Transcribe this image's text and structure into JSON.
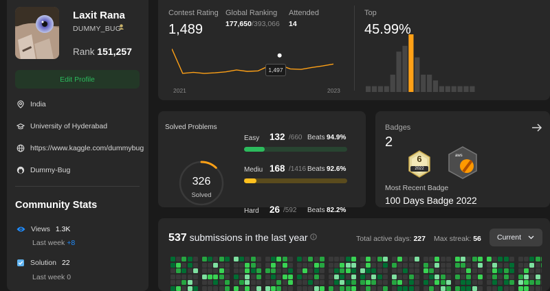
{
  "profile": {
    "name": "Laxit Rana",
    "handle": "DUMMY_BUG",
    "rank_label": "Rank",
    "rank_value": "151,257",
    "edit_button": "Edit Profile",
    "location": "India",
    "school": "University of Hyderabad",
    "website": "https://www.kaggle.com/dummybug",
    "github": "Dummy-Bug"
  },
  "community": {
    "title": "Community Stats",
    "views_label": "Views",
    "views_value": "1.3K",
    "views_sub": "Last week",
    "views_delta": "+8",
    "solution_label": "Solution",
    "solution_value": "22",
    "solution_sub": "Last week",
    "solution_delta": "0"
  },
  "contest": {
    "rating_label": "Contest Rating",
    "rating_value": "1,489",
    "global_label": "Global Ranking",
    "global_rank": "177,650",
    "global_total": "/393,066",
    "attended_label": "Attended",
    "attended_value": "14",
    "tooltip": "1,497",
    "year_start": "2021",
    "year_end": "2023",
    "top_label": "Top",
    "top_value": "45.99%",
    "rating_history": [
      1530,
      1480,
      1482,
      1480,
      1481,
      1483,
      1487,
      1484,
      1485,
      1495,
      1497,
      1489,
      1488,
      1492,
      1495,
      1499
    ],
    "histogram": [
      1,
      1,
      1,
      1,
      3,
      7,
      8,
      10,
      6,
      3,
      3,
      2,
      1,
      1,
      1,
      1,
      1,
      1
    ],
    "histogram_highlight_index": 7
  },
  "solved": {
    "title": "Solved Problems",
    "total": "326",
    "total_label": "Solved",
    "ring_fraction": 0.12,
    "beats_label": "Beats",
    "rows": [
      {
        "label": "Easy",
        "solved": "132",
        "total": "/660",
        "beats": "94.9%",
        "fraction": 0.2,
        "color": "#2cbb5d",
        "track": "#284431"
      },
      {
        "label": "Mediu\nm",
        "solved": "168",
        "total": "/1416",
        "beats": "92.6%",
        "fraction": 0.118,
        "color": "#ffc01e",
        "track": "#5a4b1d"
      },
      {
        "label": "Hard",
        "solved": "26",
        "total": "/592",
        "beats": "82.2%",
        "fraction": 0.044,
        "color": "#ef4743",
        "track": "#5a2d2c"
      }
    ]
  },
  "badges": {
    "title": "Badges",
    "count": "2",
    "badge1_number": "6",
    "badge1_year": "2022",
    "badge2_text": "aws",
    "recent_label": "Most Recent Badge",
    "recent_name": "100 Days Badge 2022"
  },
  "submissions": {
    "count": "537",
    "text": "submissions in the last year",
    "active_label": "Total active days:",
    "active_value": "227",
    "streak_label": "Max streak:",
    "streak_value": "56",
    "period": "Current"
  },
  "colors": {
    "accent_green": "#2cbb5d",
    "accent_orange": "#ffa116",
    "link_blue": "#1f8cff"
  }
}
